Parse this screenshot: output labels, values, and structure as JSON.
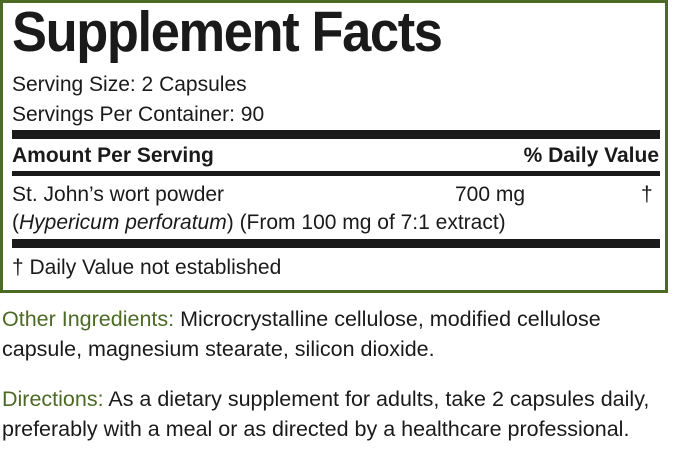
{
  "panel": {
    "title": "Supplement Facts",
    "serving_size": "Serving Size: 2 Capsules",
    "servings_per_container": "Servings Per Container: 90",
    "header_left": "Amount Per Serving",
    "header_right": "% Daily Value",
    "ingredient": {
      "name": "St. John’s wort powder",
      "amount": "700 mg",
      "daily_value": "†",
      "latin_open": "(",
      "latin": "Hypericum perforatum",
      "latin_close": ")",
      "source": " (From 100 mg of 7:1 extract)"
    },
    "footnote": "† Daily Value not established"
  },
  "other_ingredients": {
    "label": "Other Ingredients:",
    "text": " Microcrystalline cellulose, modified cellulose capsule, magnesium stearate, silicon dioxide."
  },
  "directions": {
    "label": "Directions:",
    "text": " As a dietary supplement for adults, take 2 capsules daily, preferably with a meal or as directed by a healthcare professional."
  },
  "colors": {
    "accent_green": "#4c6a24",
    "text": "#1a1a1a"
  }
}
